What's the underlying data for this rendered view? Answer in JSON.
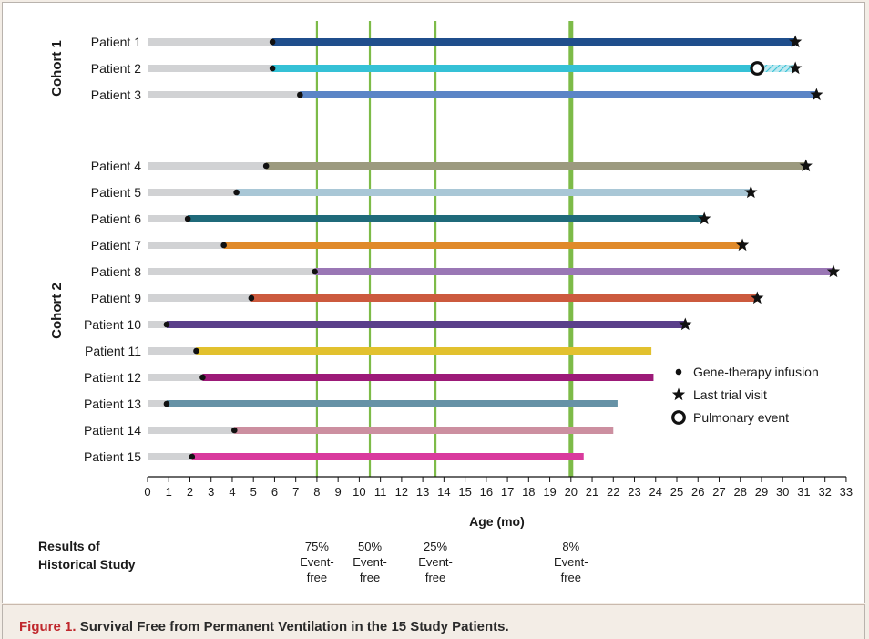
{
  "caption": {
    "label": "Figure 1.",
    "text": "Survival Free from Permanent Ventilation in the 15 Study Patients."
  },
  "chart_data": {
    "type": "gantt-timeline",
    "xlabel": "Age (mo)",
    "xlim": [
      0,
      33
    ],
    "xticks": [
      0,
      1,
      2,
      3,
      4,
      5,
      6,
      7,
      8,
      9,
      10,
      11,
      12,
      13,
      14,
      15,
      16,
      17,
      18,
      19,
      20,
      21,
      22,
      23,
      24,
      25,
      26,
      27,
      28,
      29,
      30,
      31,
      32,
      33
    ],
    "groups": [
      {
        "name": "Cohort 1",
        "patients": [
          "Patient 1",
          "Patient 2",
          "Patient 3"
        ]
      },
      {
        "name": "Cohort 2",
        "patients": [
          "Patient 4",
          "Patient 5",
          "Patient 6",
          "Patient 7",
          "Patient 8",
          "Patient 9",
          "Patient 10",
          "Patient 11",
          "Patient 12",
          "Patient 13",
          "Patient 14",
          "Patient 15"
        ]
      }
    ],
    "patients": [
      {
        "name": "Patient 1",
        "infusion": 5.9,
        "end": 30.6,
        "last_visit": true,
        "color": "#1f4e8c"
      },
      {
        "name": "Patient 2",
        "infusion": 5.9,
        "end": 30.6,
        "last_visit": true,
        "color": "#35c1d6",
        "pulmonary_event": 28.8
      },
      {
        "name": "Patient 3",
        "infusion": 7.2,
        "end": 31.6,
        "last_visit": true,
        "color": "#5b85c6"
      },
      {
        "name": "Patient 4",
        "infusion": 5.6,
        "end": 31.1,
        "last_visit": true,
        "color": "#9c9a7f"
      },
      {
        "name": "Patient 5",
        "infusion": 4.2,
        "end": 28.5,
        "last_visit": true,
        "color": "#a9c7d6"
      },
      {
        "name": "Patient 6",
        "infusion": 1.9,
        "end": 26.3,
        "last_visit": true,
        "color": "#1f6a7a"
      },
      {
        "name": "Patient 7",
        "infusion": 3.6,
        "end": 28.1,
        "last_visit": true,
        "color": "#e08a2a"
      },
      {
        "name": "Patient 8",
        "infusion": 7.9,
        "end": 32.4,
        "last_visit": true,
        "color": "#9a77b5"
      },
      {
        "name": "Patient 9",
        "infusion": 4.9,
        "end": 28.8,
        "last_visit": true,
        "color": "#cc5a3e"
      },
      {
        "name": "Patient 10",
        "infusion": 0.9,
        "end": 25.4,
        "last_visit": true,
        "color": "#5a3f8a"
      },
      {
        "name": "Patient 11",
        "infusion": 2.3,
        "end": 23.8,
        "last_visit": false,
        "color": "#e2c12e"
      },
      {
        "name": "Patient 12",
        "infusion": 2.6,
        "end": 23.9,
        "last_visit": false,
        "color": "#9c1a78"
      },
      {
        "name": "Patient 13",
        "infusion": 0.9,
        "end": 22.2,
        "last_visit": false,
        "color": "#6692a6"
      },
      {
        "name": "Patient 14",
        "infusion": 4.1,
        "end": 22.0,
        "last_visit": false,
        "color": "#cc8fa0"
      },
      {
        "name": "Patient 15",
        "infusion": 2.1,
        "end": 20.6,
        "last_visit": false,
        "color": "#d93a9d"
      }
    ],
    "reference_lines": [
      {
        "x": 8.0,
        "label": [
          "75%",
          "Event-",
          "free"
        ]
      },
      {
        "x": 10.5,
        "label": [
          "50%",
          "Event-",
          "free"
        ]
      },
      {
        "x": 13.6,
        "label": [
          "25%",
          "Event-",
          "free"
        ]
      },
      {
        "x": 20.0,
        "label": [
          "8%",
          "Event-",
          "free"
        ],
        "bold": true
      }
    ],
    "historical_label": [
      "Results of",
      "Historical Study"
    ],
    "legend": [
      {
        "symbol": "dot",
        "label": "Gene-therapy infusion"
      },
      {
        "symbol": "star",
        "label": "Last trial visit"
      },
      {
        "symbol": "ring",
        "label": "Pulmonary event"
      }
    ],
    "legend_position": "right",
    "pre_infusion_color": "#d1d2d4",
    "reference_color": "#7dbb48"
  }
}
